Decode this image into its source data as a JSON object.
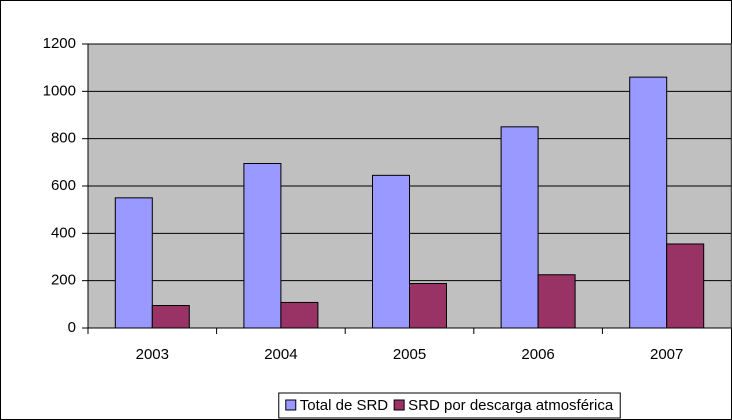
{
  "chart_data": {
    "type": "bar",
    "categories": [
      "2003",
      "2004",
      "2005",
      "2006",
      "2007"
    ],
    "series": [
      {
        "name": "Total de SRD",
        "color": "#9999ff",
        "values": [
          550,
          695,
          645,
          850,
          1060
        ]
      },
      {
        "name": "SRD por descarga atmosférica",
        "color": "#993366",
        "values": [
          95,
          108,
          188,
          225,
          355
        ]
      }
    ],
    "ylim": [
      0,
      1200
    ],
    "yticks": [
      0,
      200,
      400,
      600,
      800,
      1000,
      1200
    ],
    "grid": true,
    "plot_background": "#c0c0c0",
    "legend": "bottom"
  }
}
